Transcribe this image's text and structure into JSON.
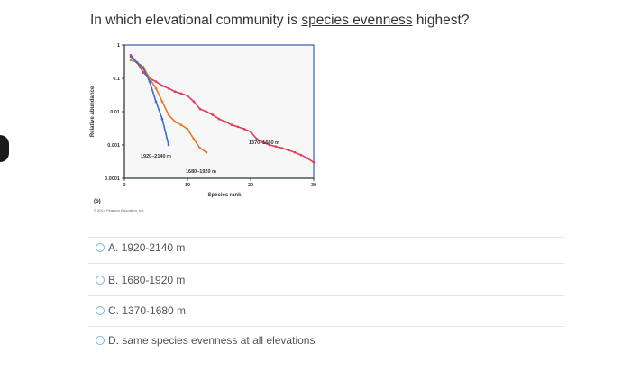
{
  "question": {
    "prefix": "In which elevational community is ",
    "underlined": "species evenness",
    "suffix": " highest?"
  },
  "figure": {
    "panel_label": "(b)",
    "credit": "© 2014 Pearson Education, Inc.",
    "ylabel": "Relative abundance",
    "xlabel": "Species rank",
    "yticks": [
      "1",
      "0.1",
      "0.01",
      "0.001",
      "0.0001"
    ],
    "xticks": [
      "0",
      "10",
      "20",
      "30"
    ],
    "series_labels": {
      "high": "1920–2140 m",
      "mid": "1680–1920 m",
      "low": "1370–1680 m"
    }
  },
  "chart_data": {
    "type": "line",
    "xlabel": "Species rank",
    "ylabel": "Relative abundance",
    "y_scale": "log",
    "xlim": [
      0,
      30
    ],
    "ylim": [
      0.0001,
      1
    ],
    "series": [
      {
        "name": "1920–2140 m",
        "color": "#3a6fc4",
        "x": [
          1,
          2,
          3,
          4,
          5,
          6,
          7
        ],
        "y": [
          0.45,
          0.3,
          0.2,
          0.08,
          0.02,
          0.006,
          0.001
        ]
      },
      {
        "name": "1680–1920 m",
        "color": "#e8792b",
        "x": [
          1,
          2,
          3,
          4,
          5,
          6,
          7,
          8,
          9,
          10,
          11,
          12,
          13
        ],
        "y": [
          0.35,
          0.3,
          0.22,
          0.1,
          0.05,
          0.02,
          0.008,
          0.005,
          0.004,
          0.003,
          0.0015,
          0.0008,
          0.0006
        ]
      },
      {
        "name": "1370–1680 m",
        "color": "#d9405a",
        "x": [
          1,
          2,
          3,
          4,
          5,
          6,
          7,
          8,
          9,
          10,
          11,
          12,
          13,
          14,
          15,
          16,
          17,
          18,
          19,
          20,
          21,
          22,
          23,
          24,
          25,
          26,
          27,
          28,
          29,
          30
        ],
        "y": [
          0.5,
          0.3,
          0.15,
          0.1,
          0.08,
          0.06,
          0.05,
          0.04,
          0.035,
          0.03,
          0.02,
          0.012,
          0.01,
          0.008,
          0.006,
          0.005,
          0.004,
          0.0035,
          0.003,
          0.0025,
          0.0015,
          0.0012,
          0.001,
          0.0009,
          0.0008,
          0.0007,
          0.0006,
          0.0005,
          0.0004,
          0.0003
        ]
      }
    ]
  },
  "options": [
    {
      "label": "A. 1920-2140 m"
    },
    {
      "label": "B. 1680-1920 m"
    },
    {
      "label": "C. 1370-1680 m"
    },
    {
      "label": "D. same species evenness at all elevations"
    }
  ],
  "colors": {
    "high": "#3a6fc4",
    "mid": "#e8792b",
    "low": "#d9405a",
    "plot_border": "#3a5fa8",
    "radio_border": "#7fb3d5"
  }
}
